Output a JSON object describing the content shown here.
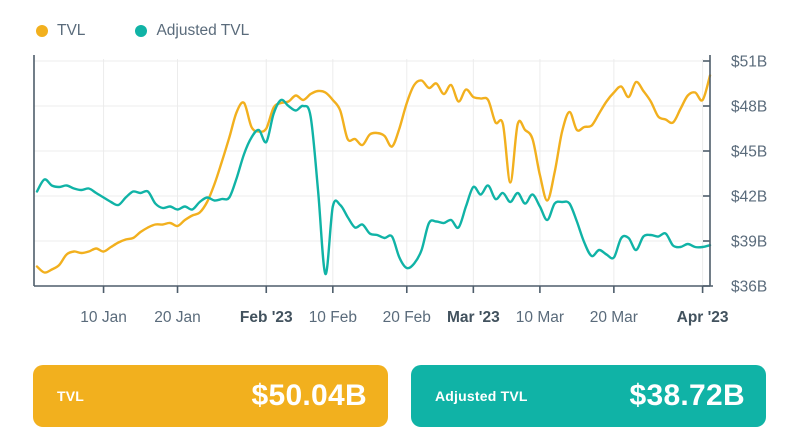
{
  "legend": {
    "items": [
      {
        "label": "TVL",
        "color": "#F2B01E"
      },
      {
        "label": "Adjusted TVL",
        "color": "#10B3A6"
      }
    ]
  },
  "chart_data": {
    "type": "line",
    "x_range": {
      "start": "1 Jan 2023",
      "end": "2 Apr 2023",
      "interval": "daily"
    },
    "ylim": [
      36,
      51
    ],
    "grid": true,
    "legend_position": "top-left",
    "y_ticks": [
      {
        "label": "$36B",
        "value": 36
      },
      {
        "label": "$39B",
        "value": 39
      },
      {
        "label": "$42B",
        "value": 42
      },
      {
        "label": "$45B",
        "value": 45
      },
      {
        "label": "$48B",
        "value": 48
      },
      {
        "label": "$51B",
        "value": 51
      }
    ],
    "x_ticks": [
      {
        "label": "10 Jan",
        "day": 9,
        "bold": false
      },
      {
        "label": "20 Jan",
        "day": 19,
        "bold": false
      },
      {
        "label": "Feb '23",
        "day": 31,
        "bold": true
      },
      {
        "label": "10 Feb",
        "day": 40,
        "bold": false
      },
      {
        "label": "20 Feb",
        "day": 50,
        "bold": false
      },
      {
        "label": "Mar '23",
        "day": 59,
        "bold": true
      },
      {
        "label": "10 Mar",
        "day": 68,
        "bold": false
      },
      {
        "label": "20 Mar",
        "day": 78,
        "bold": false
      },
      {
        "label": "Apr '23",
        "day": 90,
        "bold": true
      }
    ],
    "series": [
      {
        "name": "TVL",
        "color": "#F2B01E",
        "values": [
          37.3,
          36.9,
          37.1,
          37.4,
          38.1,
          38.3,
          38.2,
          38.3,
          38.5,
          38.3,
          38.6,
          38.9,
          39.1,
          39.2,
          39.6,
          39.9,
          40.1,
          40.1,
          40.2,
          40.0,
          40.4,
          40.7,
          40.9,
          41.6,
          42.8,
          44.3,
          45.9,
          47.6,
          48.2,
          46.6,
          46.3,
          46.5,
          47.9,
          48.2,
          48.3,
          48.7,
          48.4,
          48.8,
          49.0,
          48.9,
          48.4,
          47.7,
          45.8,
          45.8,
          45.4,
          46.1,
          46.2,
          46.0,
          45.3,
          46.5,
          48.2,
          49.4,
          49.7,
          49.2,
          49.5,
          48.8,
          49.4,
          48.3,
          49.1,
          48.6,
          48.5,
          48.4,
          46.9,
          46.8,
          42.9,
          46.8,
          46.4,
          45.8,
          43.4,
          41.7,
          43.6,
          46.3,
          47.6,
          46.4,
          46.6,
          46.7,
          47.5,
          48.3,
          48.9,
          49.3,
          48.6,
          49.6,
          49.0,
          48.3,
          47.3,
          47.1,
          46.9,
          47.8,
          48.7,
          48.9,
          48.4,
          50.04
        ]
      },
      {
        "name": "Adjusted TVL",
        "color": "#10B3A6",
        "values": [
          42.3,
          43.1,
          42.7,
          42.6,
          42.7,
          42.5,
          42.4,
          42.5,
          42.2,
          41.9,
          41.6,
          41.4,
          41.9,
          42.3,
          42.2,
          42.3,
          41.5,
          41.2,
          41.3,
          41.1,
          41.3,
          41.1,
          41.6,
          41.9,
          41.7,
          41.8,
          41.9,
          43.2,
          44.8,
          45.9,
          46.4,
          45.6,
          47.5,
          48.4,
          48.0,
          47.7,
          48.0,
          47.3,
          42.4,
          36.8,
          41.3,
          41.4,
          40.6,
          39.9,
          40.1,
          39.5,
          39.4,
          39.2,
          39.3,
          37.9,
          37.2,
          37.5,
          38.4,
          40.2,
          40.3,
          40.2,
          40.4,
          39.9,
          41.3,
          42.6,
          42.1,
          42.7,
          41.8,
          42.2,
          41.6,
          42.2,
          41.5,
          42.1,
          41.3,
          40.4,
          41.5,
          41.6,
          41.5,
          40.3,
          38.9,
          38.0,
          38.4,
          38.1,
          37.9,
          39.2,
          39.2,
          38.4,
          39.3,
          39.4,
          39.3,
          39.5,
          38.7,
          38.6,
          38.8,
          38.6,
          38.6,
          38.72
        ]
      }
    ],
    "colors": {
      "grid": "#ECECEC",
      "axis": "#4E5D6B",
      "tick_label": "#5A6B7B",
      "tick_label_bold": "#42525E"
    }
  },
  "cards": [
    {
      "label": "TVL",
      "value": "$50.04B",
      "color": "#F2B01E"
    },
    {
      "label": "Adjusted TVL",
      "value": "$38.72B",
      "color": "#10B3A6"
    }
  ]
}
